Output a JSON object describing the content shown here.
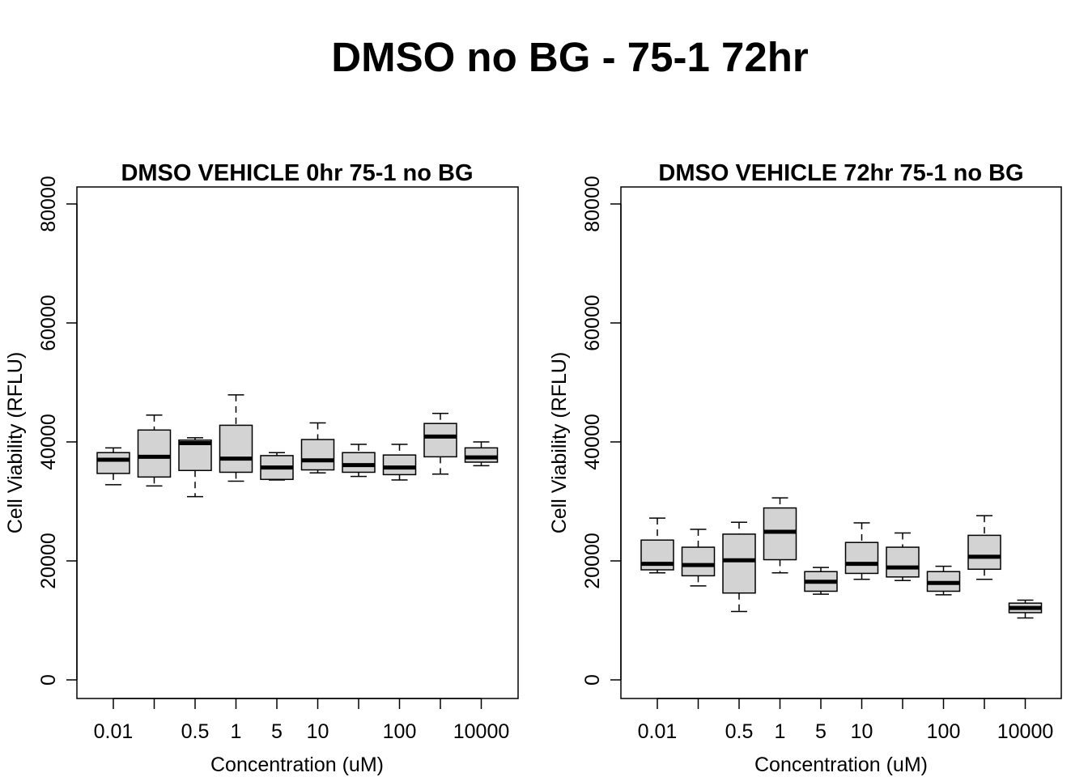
{
  "figure_title": "DMSO no BG - 75-1 72hr",
  "chart_data": [
    {
      "type": "boxplot",
      "title": "DMSO VEHICLE 0hr 75-1 no BG",
      "xlabel": "Concentration (uM)",
      "ylabel": "Cell Viability (RFLU)",
      "ylim": [
        0,
        80000
      ],
      "yticks": [
        0,
        20000,
        40000,
        60000,
        80000
      ],
      "xtick_labels": [
        "0.01",
        "",
        "0.5",
        "1",
        "5",
        "10",
        "",
        "100",
        "",
        "10000"
      ],
      "grid": false,
      "boxes": [
        {
          "whisker_low": 32800,
          "q1": 34700,
          "median": 37000,
          "q3": 38200,
          "whisker_high": 39000
        },
        {
          "whisker_low": 32600,
          "q1": 34100,
          "median": 37500,
          "q3": 42000,
          "whisker_high": 44500
        },
        {
          "whisker_low": 30800,
          "q1": 35200,
          "median": 39800,
          "q3": 40300,
          "whisker_high": 40700
        },
        {
          "whisker_low": 33400,
          "q1": 34900,
          "median": 37200,
          "q3": 42800,
          "whisker_high": 47900
        },
        {
          "whisker_low": 33600,
          "q1": 33700,
          "median": 35700,
          "q3": 37700,
          "whisker_high": 38200
        },
        {
          "whisker_low": 34800,
          "q1": 35300,
          "median": 36900,
          "q3": 40400,
          "whisker_high": 43200
        },
        {
          "whisker_low": 34200,
          "q1": 34900,
          "median": 36100,
          "q3": 38200,
          "whisker_high": 39600
        },
        {
          "whisker_low": 33600,
          "q1": 34500,
          "median": 35700,
          "q3": 37800,
          "whisker_high": 39600
        },
        {
          "whisker_low": 34600,
          "q1": 37500,
          "median": 40900,
          "q3": 43100,
          "whisker_high": 44800
        },
        {
          "whisker_low": 36000,
          "q1": 36600,
          "median": 37400,
          "q3": 39000,
          "whisker_high": 40000
        }
      ]
    },
    {
      "type": "boxplot",
      "title": "DMSO VEHICLE 72hr 75-1 no BG",
      "xlabel": "Concentration (uM)",
      "ylabel": "Cell Viability (RFLU)",
      "ylim": [
        0,
        80000
      ],
      "yticks": [
        0,
        20000,
        40000,
        60000,
        80000
      ],
      "xtick_labels": [
        "0.01",
        "",
        "0.5",
        "1",
        "5",
        "10",
        "",
        "100",
        "",
        "10000"
      ],
      "grid": false,
      "boxes": [
        {
          "whisker_low": 18000,
          "q1": 18500,
          "median": 19500,
          "q3": 23500,
          "whisker_high": 27200
        },
        {
          "whisker_low": 15800,
          "q1": 17500,
          "median": 19300,
          "q3": 22300,
          "whisker_high": 25300
        },
        {
          "whisker_low": 11500,
          "q1": 14600,
          "median": 20100,
          "q3": 24500,
          "whisker_high": 26500
        },
        {
          "whisker_low": 18000,
          "q1": 20200,
          "median": 24900,
          "q3": 28900,
          "whisker_high": 30600
        },
        {
          "whisker_low": 14400,
          "q1": 14900,
          "median": 16500,
          "q3": 18200,
          "whisker_high": 18900
        },
        {
          "whisker_low": 16900,
          "q1": 17900,
          "median": 19500,
          "q3": 23100,
          "whisker_high": 26400
        },
        {
          "whisker_low": 16700,
          "q1": 17300,
          "median": 18900,
          "q3": 22300,
          "whisker_high": 24700
        },
        {
          "whisker_low": 14300,
          "q1": 14900,
          "median": 16300,
          "q3": 18200,
          "whisker_high": 19100
        },
        {
          "whisker_low": 16900,
          "q1": 18600,
          "median": 20700,
          "q3": 24300,
          "whisker_high": 27600
        },
        {
          "whisker_low": 10400,
          "q1": 11300,
          "median": 12100,
          "q3": 12900,
          "whisker_high": 13400
        }
      ]
    }
  ]
}
